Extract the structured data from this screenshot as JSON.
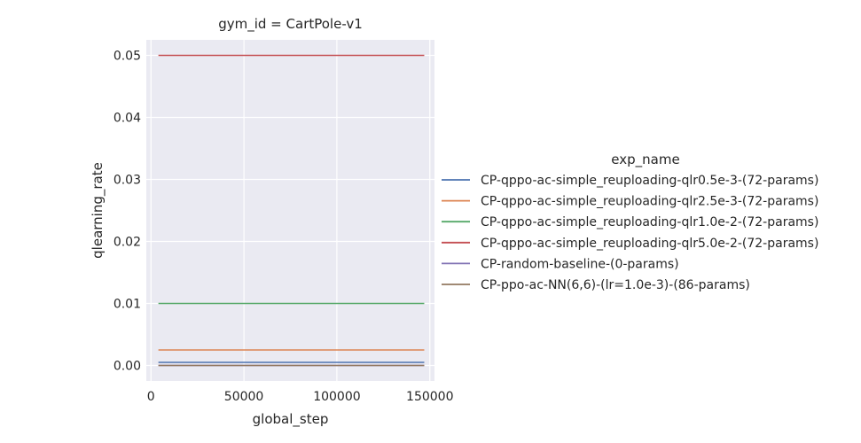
{
  "chart_data": {
    "type": "line",
    "title": "gym_id = CartPole-v1",
    "xlabel": "global_step",
    "ylabel": "qlearning_rate",
    "xlim": [
      -2500,
      152500
    ],
    "ylim": [
      -0.0025,
      0.0525
    ],
    "xticks": [
      0,
      50000,
      100000,
      150000
    ],
    "xtick_labels": [
      "0",
      "50000",
      "100000",
      "150000"
    ],
    "yticks": [
      0.0,
      0.01,
      0.02,
      0.03,
      0.04,
      0.05
    ],
    "ytick_labels": [
      "0.00",
      "0.01",
      "0.02",
      "0.03",
      "0.04",
      "0.05"
    ],
    "grid": true,
    "legend_title": "exp_name",
    "legend_position": "right",
    "x": [
      4000,
      147000
    ],
    "series": [
      {
        "name": "CP-qppo-ac-simple_reuploading-qlr0.5e-3-(72-params)",
        "color": "#4c72b0",
        "values": [
          0.0005,
          0.0005
        ]
      },
      {
        "name": "CP-qppo-ac-simple_reuploading-qlr2.5e-3-(72-params)",
        "color": "#dd8452",
        "values": [
          0.0025,
          0.0025
        ]
      },
      {
        "name": "CP-qppo-ac-simple_reuploading-qlr1.0e-2-(72-params)",
        "color": "#55a868",
        "values": [
          0.01,
          0.01
        ]
      },
      {
        "name": "CP-qppo-ac-simple_reuploading-qlr5.0e-2-(72-params)",
        "color": "#c44e52",
        "values": [
          0.05,
          0.05
        ]
      },
      {
        "name": "CP-random-baseline-(0-params)",
        "color": "#8172b3",
        "values": [
          0.0,
          0.0
        ]
      },
      {
        "name": "CP-ppo-ac-NN(6,6)-(lr=1.0e-3)-(86-params)",
        "color": "#937860",
        "values": [
          0.0,
          0.0
        ]
      }
    ]
  }
}
